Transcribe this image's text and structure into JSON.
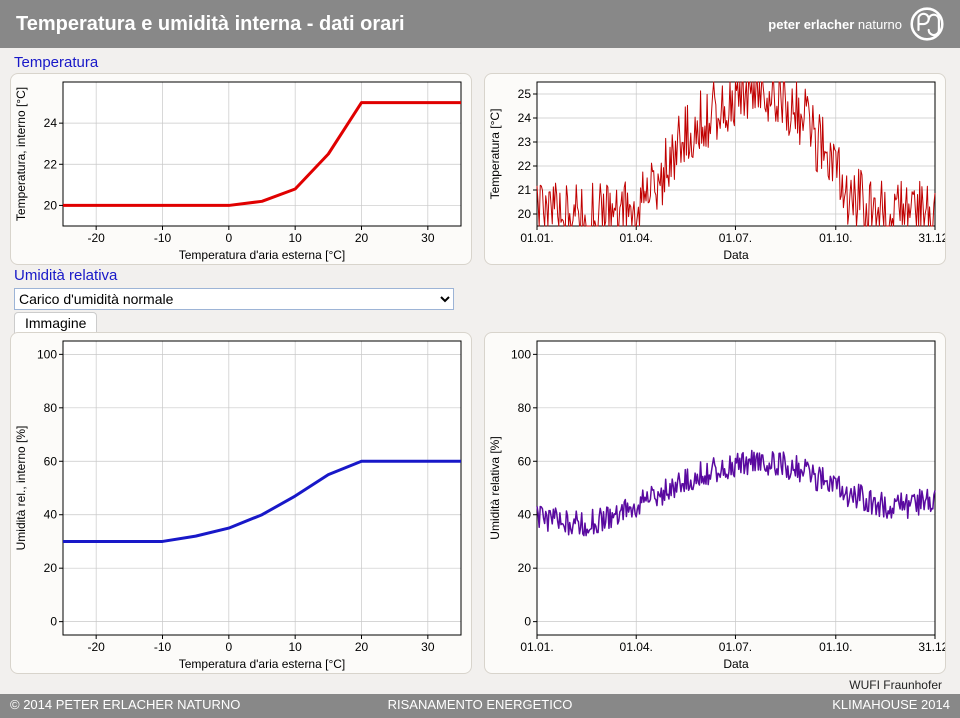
{
  "header": {
    "title": "Temperatura e umidità interna - dati orari",
    "brand_bold": "peter erlacher",
    "brand_light": " naturno"
  },
  "labels": {
    "temperatura": "Temperatura",
    "umidita_relativa": "Umidità relativa",
    "immagine": "Immagine",
    "attrib": "WUFI Fraunhofer"
  },
  "dropdown": {
    "value": "Carico d'umidità normale"
  },
  "chart_TL": {
    "type": "line",
    "title": "",
    "ylabel": "Temperatura, interno [°C]",
    "xlabel": "Temperatura d'aria esterna [°C]",
    "xlim": [
      -25,
      35
    ],
    "xticks": [
      -20,
      -10,
      0,
      10,
      20,
      30
    ],
    "ylim": [
      19,
      26
    ],
    "yticks": [
      20,
      22,
      24
    ],
    "line_color": "#e00000",
    "line_width": 3,
    "points": [
      [
        -25,
        20
      ],
      [
        -10,
        20
      ],
      [
        -5,
        20
      ],
      [
        0,
        20
      ],
      [
        5,
        20.2
      ],
      [
        10,
        20.8
      ],
      [
        15,
        22.5
      ],
      [
        20,
        25
      ],
      [
        25,
        25
      ],
      [
        30,
        25
      ],
      [
        35,
        25
      ]
    ],
    "bg": "#ffffff",
    "grid": "#c8c8c8",
    "label_fontsize": 12
  },
  "chart_TR": {
    "type": "line",
    "ylabel": "Temperatura [°C]",
    "xlabel": "Data",
    "xlim": [
      0,
      365
    ],
    "xticks_pos": [
      0,
      91,
      182,
      274,
      365
    ],
    "xticks_lab": [
      "01.01.",
      "01.04.",
      "01.07.",
      "01.10.",
      "31.12."
    ],
    "ylim": [
      19.5,
      25.5
    ],
    "yticks": [
      20,
      21,
      22,
      23,
      24,
      25
    ],
    "line_color": "#c00000",
    "line_width": 1,
    "bg": "#ffffff",
    "grid": "#c8c8c8",
    "label_fontsize": 12,
    "base_points": [
      [
        0,
        20
      ],
      [
        15,
        20
      ],
      [
        30,
        20
      ],
      [
        45,
        20
      ],
      [
        60,
        20
      ],
      [
        75,
        20
      ],
      [
        90,
        20.2
      ],
      [
        100,
        20.5
      ],
      [
        110,
        21.2
      ],
      [
        120,
        22.0
      ],
      [
        130,
        22.8
      ],
      [
        140,
        23.4
      ],
      [
        150,
        23.8
      ],
      [
        160,
        24.2
      ],
      [
        170,
        24.6
      ],
      [
        180,
        25.0
      ],
      [
        190,
        25.3
      ],
      [
        200,
        25.4
      ],
      [
        210,
        25.3
      ],
      [
        220,
        25.1
      ],
      [
        230,
        24.7
      ],
      [
        240,
        24.2
      ],
      [
        250,
        23.6
      ],
      [
        260,
        22.8
      ],
      [
        270,
        22.0
      ],
      [
        280,
        21.2
      ],
      [
        290,
        20.7
      ],
      [
        300,
        20.4
      ],
      [
        310,
        20.2
      ],
      [
        320,
        20.1
      ],
      [
        335,
        20
      ],
      [
        350,
        20
      ],
      [
        365,
        20
      ]
    ],
    "noise_amp": 1.4
  },
  "chart_BL": {
    "type": "line",
    "ylabel": "Umidità rel., interno [%]",
    "xlabel": "Temperatura d'aria esterna [°C]",
    "xlim": [
      -25,
      35
    ],
    "xticks": [
      -20,
      -10,
      0,
      10,
      20,
      30
    ],
    "ylim": [
      -5,
      105
    ],
    "yticks": [
      0,
      20,
      40,
      60,
      80,
      100
    ],
    "line_color": "#1818c8",
    "line_width": 3,
    "points": [
      [
        -25,
        30
      ],
      [
        -10,
        30
      ],
      [
        -5,
        32
      ],
      [
        0,
        35
      ],
      [
        5,
        40
      ],
      [
        10,
        47
      ],
      [
        15,
        55
      ],
      [
        20,
        60
      ],
      [
        25,
        60
      ],
      [
        30,
        60
      ],
      [
        35,
        60
      ]
    ],
    "bg": "#ffffff",
    "grid": "#c8c8c8",
    "label_fontsize": 12
  },
  "chart_BR": {
    "type": "line",
    "ylabel": "Umidità relativa [%]",
    "xlabel": "Data",
    "xlim": [
      0,
      365
    ],
    "xticks_pos": [
      0,
      91,
      182,
      274,
      365
    ],
    "xticks_lab": [
      "01.01.",
      "01.04.",
      "01.07.",
      "01.10.",
      "31.12."
    ],
    "ylim": [
      -5,
      105
    ],
    "yticks": [
      0,
      20,
      40,
      60,
      80,
      100
    ],
    "line_color": "#5a0aa0",
    "line_width": 1.5,
    "bg": "#ffffff",
    "grid": "#c8c8c8",
    "label_fontsize": 12,
    "base_points": [
      [
        0,
        39
      ],
      [
        15,
        38
      ],
      [
        30,
        37
      ],
      [
        45,
        37
      ],
      [
        60,
        38
      ],
      [
        75,
        40
      ],
      [
        90,
        43
      ],
      [
        105,
        46
      ],
      [
        120,
        49
      ],
      [
        135,
        52
      ],
      [
        150,
        55
      ],
      [
        165,
        57
      ],
      [
        180,
        59
      ],
      [
        195,
        60
      ],
      [
        210,
        60
      ],
      [
        225,
        59
      ],
      [
        240,
        57
      ],
      [
        255,
        54
      ],
      [
        270,
        51
      ],
      [
        285,
        48
      ],
      [
        300,
        46
      ],
      [
        315,
        44
      ],
      [
        330,
        43
      ],
      [
        345,
        44
      ],
      [
        365,
        46
      ]
    ],
    "noise_amp": 5
  },
  "footer": {
    "left": "© 2014 PETER ERLACHER NATURNO",
    "mid": "RISANAMENTO ENERGETICO",
    "right": "KLIMAHOUSE 2014"
  },
  "colors": {
    "header_bg": "#888888",
    "panel_bg": "#fcfbf9",
    "panel_border": "#d8d4cc"
  }
}
